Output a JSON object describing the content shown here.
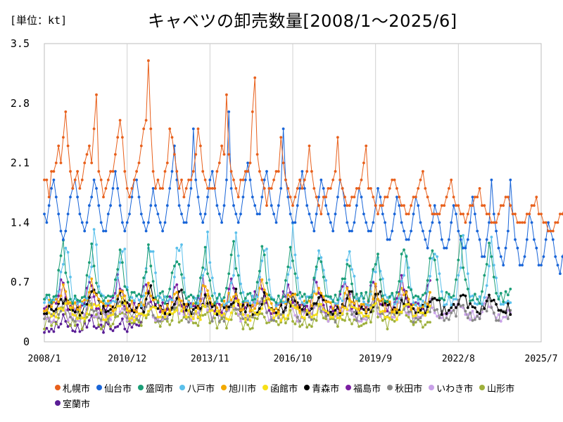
{
  "unit_label": "[単位：kt]",
  "chart_data": {
    "type": "line",
    "title": "キャベツの卸売数量[2008/1〜2025/6]",
    "xlabel": "",
    "ylabel": "",
    "x_range": [
      "2008/1",
      "2025/7"
    ],
    "x_ticks": [
      "2008/1",
      "2010/12",
      "2013/11",
      "2016/10",
      "2019/9",
      "2022/8",
      "2025/7"
    ],
    "y_range": [
      0,
      3.5
    ],
    "y_ticks": [
      "0",
      "0.7",
      "1.4",
      "2.1",
      "2.8",
      "3.5"
    ],
    "grid": "vertical",
    "legend_position": "bottom",
    "series": [
      {
        "name": "札幌市",
        "color": "#e8601c",
        "end": "2025/6",
        "values": [
          1.9,
          1.9,
          1.7,
          2.0,
          2.0,
          2.1,
          2.3,
          2.1,
          2.4,
          2.7,
          2.3,
          2.0,
          1.8,
          1.9,
          2.0,
          1.8,
          1.9,
          2.1,
          2.2,
          2.3,
          2.1,
          2.5,
          2.9,
          2.0,
          1.9,
          1.7,
          1.8,
          1.9,
          2.0,
          2.0,
          2.2,
          2.4,
          2.6,
          2.4,
          2.0,
          1.8,
          1.7,
          1.8,
          1.9,
          2.0,
          2.1,
          2.3,
          2.5,
          2.6,
          3.3,
          2.5,
          2.0,
          1.8,
          1.9,
          1.8,
          1.8,
          2.0,
          2.1,
          2.5,
          2.4,
          2.2,
          2.0,
          1.8,
          1.9,
          1.7,
          1.8,
          1.9,
          1.9,
          2.0,
          2.2,
          2.5,
          2.3,
          2.0,
          1.9,
          1.8,
          1.8,
          1.8,
          1.8,
          2.0,
          2.1,
          2.3,
          2.2,
          2.9,
          2.2,
          2.0,
          1.9,
          1.8,
          1.7,
          1.9,
          1.9,
          2.0,
          2.0,
          2.1,
          2.7,
          3.1,
          2.2,
          2.0,
          1.9,
          1.8,
          1.6,
          1.8,
          1.8,
          1.9,
          2.0,
          2.0,
          2.4,
          2.1,
          1.9,
          1.8,
          1.7,
          1.6,
          1.7,
          1.8,
          1.9,
          1.8,
          1.9,
          2.0,
          2.3,
          2.0,
          1.8,
          1.7,
          1.6,
          1.5,
          1.7,
          1.7,
          1.8,
          1.8,
          1.9,
          2.0,
          2.4,
          1.9,
          1.8,
          1.7,
          1.6,
          1.6,
          1.7,
          1.7,
          1.8,
          1.8,
          1.9,
          2.1,
          2.3,
          1.8,
          1.8,
          1.7,
          1.6,
          1.5,
          1.6,
          1.6,
          1.7,
          1.7,
          1.8,
          1.9,
          1.9,
          1.8,
          1.7,
          1.6,
          1.6,
          1.5,
          1.5,
          1.6,
          1.7,
          1.7,
          1.8,
          1.9,
          2.0,
          1.8,
          1.7,
          1.6,
          1.5,
          1.5,
          1.5,
          1.5,
          1.6,
          1.6,
          1.7,
          1.8,
          1.9,
          1.7,
          1.6,
          1.6,
          1.5,
          1.5,
          1.4,
          1.5,
          1.6,
          1.6,
          1.7,
          1.7,
          1.8,
          1.6,
          1.6,
          1.5,
          1.5,
          1.4,
          1.4,
          1.4,
          1.5,
          1.6,
          1.6,
          1.7,
          1.7,
          1.6,
          1.5,
          1.5,
          1.4,
          1.4,
          1.4,
          1.4,
          1.5,
          1.5,
          1.6,
          1.6,
          1.7,
          1.5,
          1.5,
          1.4,
          1.4,
          1.3,
          1.3,
          1.3,
          1.4,
          1.4,
          1.5,
          1.5,
          1.6,
          1.5,
          1.4,
          1.4,
          1.3,
          1.3,
          1.2,
          1.3,
          1.3,
          1.4,
          1.4,
          1.5,
          1.7,
          1.6,
          1.5
        ]
      },
      {
        "name": "仙台市",
        "color": "#1965d8",
        "end": "2025/6",
        "values": [
          1.5,
          1.4,
          1.6,
          1.8,
          1.9,
          1.7,
          1.5,
          1.3,
          1.2,
          1.3,
          1.5,
          1.7,
          1.8,
          1.9,
          1.7,
          1.5,
          1.4,
          1.3,
          1.4,
          1.6,
          1.7,
          1.9,
          1.8,
          1.6,
          1.4,
          1.3,
          1.3,
          1.5,
          1.6,
          1.8,
          2.0,
          1.8,
          1.6,
          1.4,
          1.3,
          1.4,
          1.5,
          1.7,
          1.9,
          1.9,
          1.7,
          1.5,
          1.4,
          1.3,
          1.4,
          1.6,
          1.8,
          1.6,
          1.5,
          1.4,
          1.3,
          1.4,
          1.6,
          1.8,
          2.0,
          2.3,
          1.9,
          1.6,
          1.5,
          1.4,
          1.4,
          1.6,
          1.8,
          2.5,
          1.9,
          1.7,
          1.5,
          1.4,
          1.5,
          1.7,
          1.9,
          2.0,
          1.8,
          1.6,
          1.5,
          1.4,
          1.6,
          1.9,
          2.7,
          1.8,
          1.6,
          1.5,
          1.4,
          1.5,
          1.7,
          1.9,
          2.1,
          1.9,
          1.7,
          1.6,
          1.5,
          1.5,
          1.7,
          1.9,
          2.0,
          1.8,
          1.6,
          1.5,
          1.4,
          1.6,
          1.8,
          2.5,
          1.9,
          1.7,
          1.5,
          1.4,
          1.4,
          1.6,
          1.8,
          2.0,
          1.8,
          1.6,
          1.5,
          1.4,
          1.3,
          1.5,
          1.7,
          1.9,
          1.8,
          1.6,
          1.5,
          1.4,
          1.3,
          1.5,
          1.7,
          1.9,
          1.8,
          1.6,
          1.4,
          1.3,
          1.3,
          1.4,
          1.6,
          1.8,
          1.7,
          1.5,
          1.4,
          1.3,
          1.3,
          1.4,
          1.6,
          1.8,
          1.7,
          1.5,
          1.4,
          1.2,
          1.2,
          1.3,
          1.5,
          1.7,
          1.6,
          1.4,
          1.3,
          1.2,
          1.2,
          1.3,
          1.5,
          1.7,
          1.6,
          1.4,
          1.3,
          1.2,
          1.1,
          1.3,
          1.4,
          1.6,
          1.5,
          1.4,
          1.2,
          1.1,
          1.1,
          1.2,
          1.4,
          1.6,
          1.5,
          1.3,
          1.2,
          1.1,
          1.1,
          1.2,
          1.4,
          1.7,
          1.5,
          1.3,
          1.2,
          1.0,
          1.0,
          1.2,
          1.4,
          1.9,
          1.5,
          1.3,
          1.1,
          1.0,
          0.9,
          1.1,
          1.3,
          1.9,
          1.5,
          1.2,
          1.1,
          0.9,
          0.9,
          1.0,
          1.2,
          1.5,
          1.4,
          1.2,
          1.1,
          0.9,
          0.9,
          1.0,
          1.2,
          1.4,
          1.3,
          1.2,
          1.0,
          0.9,
          0.8,
          1.0,
          1.1,
          1.4,
          1.3,
          1.1,
          1.0,
          0.5,
          0.5,
          0.4,
          0.5,
          0.6,
          0.9,
          0.8,
          0.6
        ]
      },
      {
        "name": "盛岡市",
        "color": "#1b9e77",
        "end": "2024/6",
        "base": 0.52,
        "amp": 0.55,
        "peak_month": 8
      },
      {
        "name": "八戸市",
        "color": "#5bc0eb",
        "end": "2024/6",
        "base": 0.48,
        "amp": 0.7,
        "peak_month": 9
      },
      {
        "name": "旭川市",
        "color": "#f2a900",
        "end": "2021/8",
        "base": 0.42,
        "amp": 0.22,
        "peak_month": 8
      },
      {
        "name": "函館市",
        "color": "#f7e017",
        "end": "2021/8",
        "base": 0.32,
        "amp": 0.14,
        "peak_month": 9
      },
      {
        "name": "青森市",
        "color": "#000000",
        "end": "2024/6",
        "base": 0.38,
        "amp": 0.18,
        "peak_month": 9
      },
      {
        "name": "福島市",
        "color": "#7b1fa2",
        "end": "2021/8",
        "base": 0.4,
        "amp": 0.3,
        "peak_month": 7
      },
      {
        "name": "秋田市",
        "color": "#888888",
        "end": "2024/6",
        "base": 0.3,
        "amp": 0.16,
        "peak_month": 8
      },
      {
        "name": "いわき市",
        "color": "#c8a0e8",
        "end": "2024/6",
        "base": 0.3,
        "amp": 0.2,
        "peak_month": 7
      },
      {
        "name": "山形市",
        "color": "#9eb03c",
        "end": "2021/8",
        "base": 0.22,
        "amp": 0.14,
        "peak_month": 8
      },
      {
        "name": "室蘭市",
        "color": "#5a1e96",
        "end": "2011/6",
        "base": 0.17,
        "amp": 0.1,
        "peak_month": 8
      }
    ]
  }
}
